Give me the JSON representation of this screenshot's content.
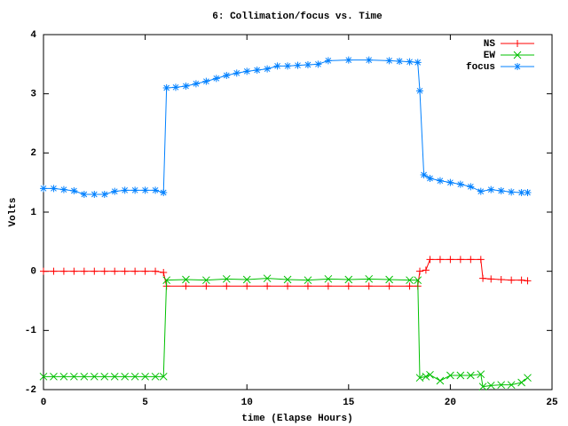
{
  "chart_data": {
    "type": "line",
    "title": "6: Collimation/focus vs. Time",
    "x_label": "time (Elapse Hours)",
    "y_label": "Volts",
    "xlim": [
      0,
      25
    ],
    "xticks": [
      0,
      5,
      10,
      15,
      20,
      25
    ],
    "ylim": [
      -2,
      4
    ],
    "yticks": [
      -2,
      -1,
      0,
      1,
      2,
      3,
      4
    ],
    "legend": "top right",
    "series": [
      {
        "name": "NS",
        "color": "#ff0000",
        "marker": "plus",
        "x": [
          0,
          0.5,
          1,
          1.5,
          2,
          2.5,
          3,
          3.5,
          4,
          4.5,
          5,
          5.5,
          5.9,
          6.05,
          7,
          8,
          9,
          10,
          11,
          12,
          13,
          14,
          15,
          16,
          17,
          18,
          18.4,
          18.5,
          18.8,
          19,
          19.5,
          20,
          20.5,
          21,
          21.5,
          21.6,
          22,
          22.5,
          23,
          23.5,
          23.8
        ],
        "values": [
          0,
          0,
          0,
          0,
          0,
          0,
          0,
          0,
          0,
          0,
          0,
          0,
          -0.02,
          -0.25,
          -0.25,
          -0.25,
          -0.25,
          -0.25,
          -0.25,
          -0.25,
          -0.25,
          -0.25,
          -0.25,
          -0.25,
          -0.25,
          -0.25,
          -0.25,
          0,
          0.02,
          0.2,
          0.2,
          0.2,
          0.2,
          0.2,
          0.2,
          -0.12,
          -0.13,
          -0.14,
          -0.15,
          -0.15,
          -0.16
        ]
      },
      {
        "name": "EW",
        "color": "#00c000",
        "marker": "cross",
        "x": [
          0,
          0.5,
          1,
          1.5,
          2,
          2.5,
          3,
          3.5,
          4,
          4.5,
          5,
          5.5,
          5.9,
          6.05,
          7,
          8,
          9,
          10,
          11,
          12,
          13,
          14,
          15,
          16,
          17,
          18,
          18.4,
          18.5,
          18.8,
          19,
          19.5,
          20,
          20.5,
          21,
          21.5,
          21.6,
          22,
          22.5,
          23,
          23.5,
          23.8
        ],
        "values": [
          -1.78,
          -1.78,
          -1.78,
          -1.78,
          -1.78,
          -1.78,
          -1.78,
          -1.78,
          -1.78,
          -1.78,
          -1.78,
          -1.78,
          -1.78,
          -0.15,
          -0.14,
          -0.15,
          -0.13,
          -0.14,
          -0.12,
          -0.14,
          -0.15,
          -0.13,
          -0.14,
          -0.13,
          -0.14,
          -0.15,
          -0.15,
          -1.8,
          -1.78,
          -1.75,
          -1.85,
          -1.76,
          -1.76,
          -1.76,
          -1.74,
          -1.95,
          -1.93,
          -1.92,
          -1.92,
          -1.88,
          -1.8
        ]
      },
      {
        "name": "focus",
        "color": "#0080ff",
        "marker": "star",
        "x": [
          0,
          0.5,
          1,
          1.5,
          2,
          2.5,
          3,
          3.5,
          4,
          4.5,
          5,
          5.5,
          5.9,
          6.05,
          6.5,
          7,
          7.5,
          8,
          8.5,
          9,
          9.5,
          10,
          10.5,
          11,
          11.5,
          12,
          12.5,
          13,
          13.5,
          14,
          15,
          16,
          17,
          17.5,
          18,
          18.4,
          18.5,
          18.7,
          19,
          19.5,
          20,
          20.5,
          21,
          21.5,
          22,
          22.5,
          23,
          23.5,
          23.8
        ],
        "values": [
          1.4,
          1.4,
          1.38,
          1.36,
          1.3,
          1.3,
          1.3,
          1.35,
          1.37,
          1.37,
          1.37,
          1.37,
          1.33,
          3.1,
          3.11,
          3.13,
          3.17,
          3.21,
          3.26,
          3.31,
          3.35,
          3.38,
          3.4,
          3.42,
          3.47,
          3.47,
          3.48,
          3.49,
          3.5,
          3.56,
          3.57,
          3.57,
          3.56,
          3.55,
          3.54,
          3.53,
          3.05,
          1.63,
          1.57,
          1.53,
          1.5,
          1.47,
          1.43,
          1.35,
          1.38,
          1.36,
          1.34,
          1.33,
          1.33
        ]
      }
    ]
  }
}
